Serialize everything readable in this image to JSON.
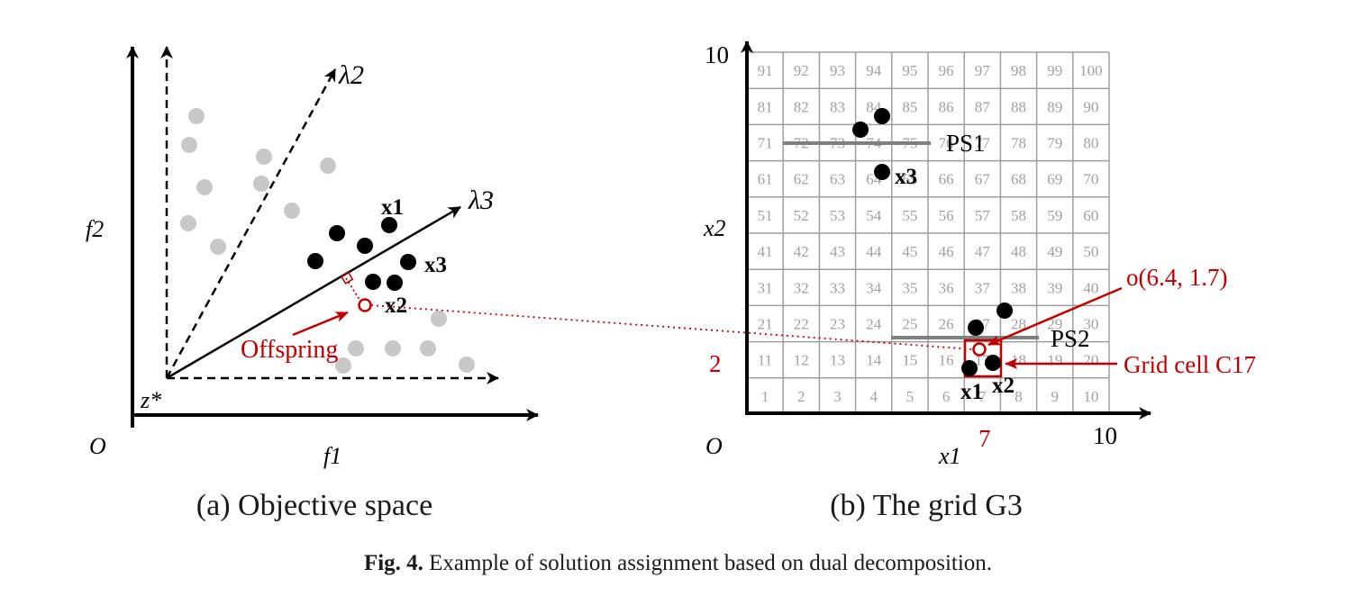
{
  "panel_a": {
    "title": "(a) Objective space",
    "origin_label": "O",
    "ideal_point_label": "z*",
    "axis_f1_label": "f1",
    "axis_f2_label": "f2",
    "lambda2_label": "λ2",
    "lambda3_label": "λ3",
    "x1_label": "x1",
    "x2_label": "x2",
    "x3_label": "x3",
    "offspring_label": "Offspring"
  },
  "panel_b": {
    "title": "(b) The grid G3",
    "origin_label": "O",
    "axis_x1_label": "x1",
    "axis_x2_label": "x2",
    "tick_x_max": "10",
    "tick_y_max": "10",
    "tick_x_cell": "7",
    "tick_y_cell": "2",
    "grid_rows": 10,
    "grid_cols": 10,
    "cell_numbers": [
      "1",
      "2",
      "3",
      "4",
      "5",
      "6",
      "7",
      "8",
      "9",
      "10",
      "11",
      "12",
      "13",
      "14",
      "15",
      "16",
      "17",
      "18",
      "19",
      "20",
      "21",
      "22",
      "23",
      "24",
      "25",
      "26",
      "27",
      "28",
      "29",
      "30",
      "31",
      "32",
      "33",
      "34",
      "35",
      "36",
      "37",
      "38",
      "39",
      "40",
      "41",
      "42",
      "43",
      "44",
      "45",
      "46",
      "47",
      "48",
      "49",
      "50",
      "51",
      "52",
      "53",
      "54",
      "55",
      "56",
      "57",
      "58",
      "59",
      "60",
      "61",
      "62",
      "63",
      "64",
      "65",
      "66",
      "67",
      "68",
      "69",
      "70",
      "71",
      "72",
      "73",
      "74",
      "75",
      "76",
      "77",
      "78",
      "79",
      "80",
      "81",
      "82",
      "83",
      "84",
      "85",
      "86",
      "87",
      "88",
      "89",
      "90",
      "91",
      "92",
      "93",
      "94",
      "95",
      "96",
      "97",
      "98",
      "99",
      "100"
    ],
    "ps1_label": "PS1",
    "ps2_label": "PS2",
    "x1_label": "x1",
    "x2_label": "x2",
    "x3_label": "x3",
    "offspring_point_label": "o(6.4, 1.7)",
    "grid_cell_label": "Grid cell C17"
  },
  "caption": {
    "fig_label": "Fig. 4.",
    "text": " Example of solution assignment based on dual decomposition."
  },
  "colors": {
    "accent_red": "#c00000",
    "gray_points": "#c8c8c8",
    "grid_lines": "#9e9e9e",
    "cell_text": "#a0a0a0",
    "ps_lines": "#7f7f7f"
  }
}
